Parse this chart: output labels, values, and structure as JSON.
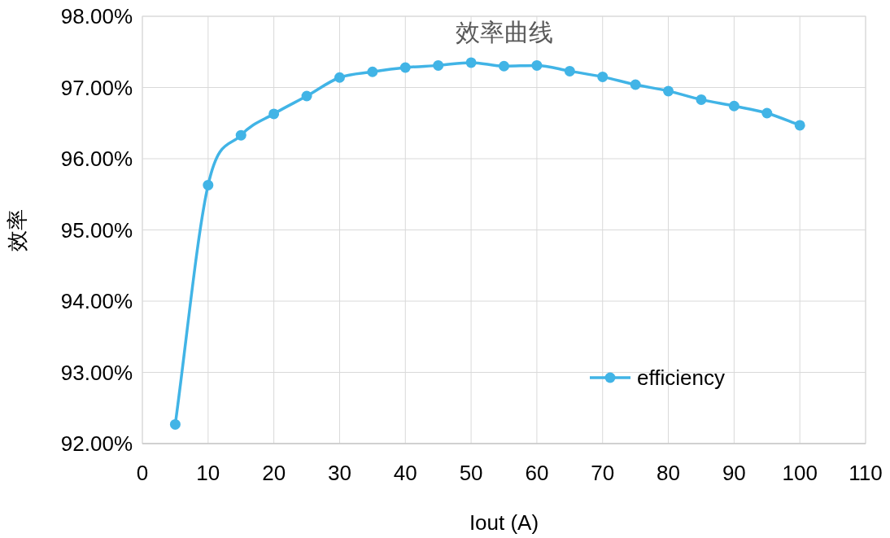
{
  "chart_data": {
    "type": "line",
    "title": "效率曲线",
    "xlabel": "Iout (A)",
    "ylabel": "效率",
    "x": [
      5,
      10,
      15,
      20,
      25,
      30,
      35,
      40,
      45,
      50,
      55,
      60,
      65,
      70,
      75,
      80,
      85,
      90,
      95,
      100
    ],
    "series": [
      {
        "name": "efficiency",
        "color": "#41b4e6",
        "values": [
          92.27,
          95.63,
          96.33,
          96.63,
          96.88,
          97.14,
          97.22,
          97.28,
          97.31,
          97.35,
          97.3,
          97.31,
          97.23,
          97.15,
          97.04,
          96.95,
          96.83,
          96.74,
          96.64,
          96.47
        ]
      }
    ],
    "xlim": [
      0,
      110
    ],
    "xticks": [
      0,
      10,
      20,
      30,
      40,
      50,
      60,
      70,
      80,
      90,
      100,
      110
    ],
    "ylim": [
      92,
      98
    ],
    "yticks": [
      {
        "value": 92,
        "label": "92.00%"
      },
      {
        "value": 93,
        "label": "93.00%"
      },
      {
        "value": 94,
        "label": "94.00%"
      },
      {
        "value": 95,
        "label": "95.00%"
      },
      {
        "value": 96,
        "label": "96.00%"
      },
      {
        "value": 97,
        "label": "97.00%"
      },
      {
        "value": 98,
        "label": "98.00%"
      }
    ],
    "grid": true,
    "legend": "bottom right",
    "marker": "circle",
    "line_style": "solid"
  }
}
